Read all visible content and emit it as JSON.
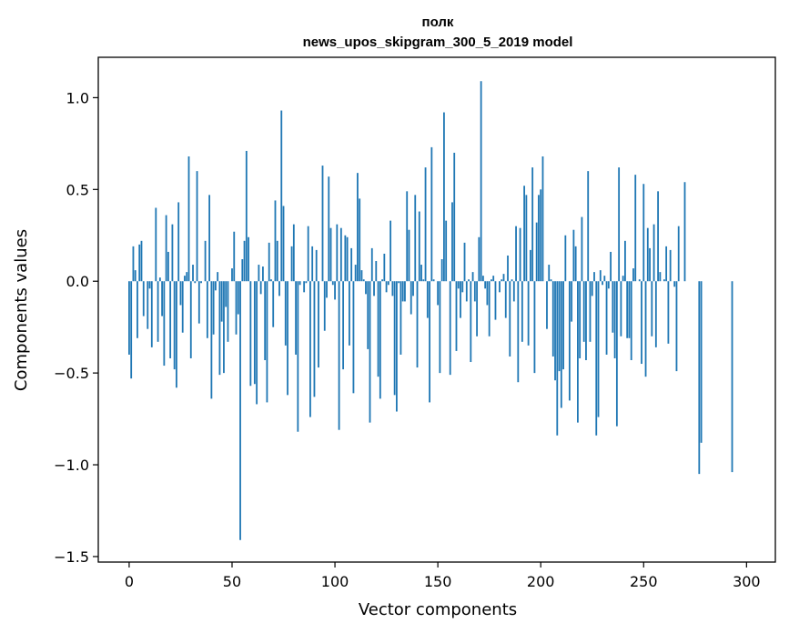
{
  "chart_data": {
    "type": "bar",
    "title": [
      "полк",
      "news_upos_skipgram_300_5_2019 model"
    ],
    "xlabel": "Vector components",
    "ylabel": "Components values",
    "xlim": [
      -15,
      314
    ],
    "ylim": [
      -1.53,
      1.22
    ],
    "xticks": [
      0,
      50,
      100,
      150,
      200,
      250,
      300
    ],
    "yticks": [
      {
        "value": 1.0,
        "label": "1.0"
      },
      {
        "value": 0.5,
        "label": "0.5"
      },
      {
        "value": 0.0,
        "label": "0.0"
      },
      {
        "value": -0.5,
        "label": "−0.5"
      },
      {
        "value": -1.0,
        "label": "−1.0"
      },
      {
        "value": -1.5,
        "label": "−1.5"
      }
    ],
    "grid": false,
    "bar_color": "#1f77b4",
    "values": [
      -0.4,
      -0.53,
      0.19,
      0.06,
      -0.31,
      0.2,
      0.22,
      -0.19,
      0.0,
      -0.26,
      -0.04,
      -0.36,
      0.0,
      0.4,
      -0.33,
      0.02,
      -0.19,
      -0.46,
      0.36,
      0.16,
      -0.42,
      0.31,
      -0.48,
      -0.58,
      0.43,
      -0.13,
      -0.28,
      0.03,
      0.05,
      0.68,
      -0.42,
      0.09,
      -0.01,
      0.6,
      -0.23,
      -0.01,
      0.0,
      0.22,
      -0.31,
      0.47,
      -0.64,
      -0.29,
      -0.05,
      0.05,
      -0.51,
      -0.22,
      -0.5,
      -0.14,
      -0.33,
      0.0,
      0.07,
      0.27,
      -0.29,
      -0.18,
      -1.41,
      0.12,
      0.22,
      0.71,
      0.24,
      -0.57,
      0.0,
      -0.56,
      -0.67,
      0.09,
      -0.07,
      0.08,
      -0.43,
      -0.66,
      0.21,
      0.01,
      -0.25,
      0.44,
      0.22,
      -0.08,
      0.93,
      0.41,
      -0.35,
      -0.62,
      0.0,
      0.19,
      0.31,
      -0.4,
      -0.82,
      -0.02,
      0.0,
      -0.06,
      -0.01,
      0.3,
      -0.74,
      0.19,
      -0.63,
      0.17,
      -0.47,
      0.0,
      0.63,
      -0.27,
      -0.09,
      0.57,
      0.29,
      -0.02,
      -0.1,
      0.31,
      -0.81,
      0.29,
      -0.48,
      0.25,
      0.24,
      -0.35,
      0.18,
      -0.61,
      0.09,
      0.59,
      0.45,
      0.06,
      0.01,
      -0.07,
      -0.37,
      -0.77,
      0.18,
      -0.08,
      0.11,
      -0.52,
      -0.64,
      0.01,
      0.15,
      -0.06,
      -0.02,
      0.33,
      -0.08,
      -0.62,
      -0.71,
      -0.01,
      -0.4,
      -0.11,
      -0.11,
      0.49,
      0.28,
      -0.18,
      -0.08,
      0.47,
      -0.47,
      0.38,
      0.09,
      0.01,
      0.62,
      -0.2,
      -0.66,
      0.73,
      0.01,
      0.0,
      -0.13,
      -0.5,
      0.12,
      0.92,
      0.33,
      0.0,
      -0.51,
      0.43,
      0.7,
      -0.38,
      -0.04,
      -0.2,
      -0.06,
      0.21,
      -0.11,
      0.01,
      -0.44,
      0.05,
      -0.11,
      -0.3,
      0.24,
      1.09,
      0.03,
      -0.04,
      -0.13,
      -0.3,
      0.01,
      0.03,
      -0.21,
      0.0,
      -0.06,
      0.01,
      0.04,
      -0.2,
      0.14,
      -0.41,
      0.01,
      -0.11,
      0.3,
      -0.55,
      0.29,
      -0.33,
      0.52,
      0.47,
      -0.35,
      0.17,
      0.62,
      -0.5,
      0.32,
      0.47,
      0.5,
      0.68,
      0.0,
      -0.26,
      0.09,
      0.01,
      -0.41,
      -0.54,
      -0.84,
      -0.49,
      -0.69,
      -0.48,
      0.25,
      0.0,
      -0.65,
      -0.22,
      0.28,
      0.19,
      -0.77,
      -0.42,
      0.35,
      -0.33,
      -0.43,
      0.6,
      -0.33,
      -0.08,
      0.05,
      -0.84,
      -0.74,
      0.06,
      -0.02,
      0.03,
      -0.4,
      -0.04,
      0.16,
      -0.28,
      -0.42,
      -0.79,
      0.62,
      -0.3,
      0.03,
      0.22,
      -0.31,
      -0.31,
      -0.43,
      0.07,
      0.58,
      0.0,
      0.01,
      -0.45,
      0.53,
      -0.52,
      0.29,
      0.18,
      -0.3,
      0.31,
      -0.36,
      0.49,
      0.05,
      0.0,
      0.01,
      0.19,
      -0.34,
      0.17,
      0.0,
      -0.03,
      -0.49,
      0.3,
      0.0,
      0.0,
      0.54,
      0.0,
      0.0,
      0.0,
      0.0,
      0.0,
      0.0,
      -1.05,
      -0.88,
      0.0,
      0.0,
      0.0,
      0.0,
      0.0,
      0.0,
      0.0,
      0.0,
      0.0,
      0.0,
      0.0,
      0.0,
      0.0,
      0.0,
      -1.04,
      0.0,
      0.0,
      0.0,
      0.0,
      0.0,
      0.0,
      0.0,
      0.0,
      0.0,
      0.0,
      0.0,
      0.0,
      0.0,
      0.0,
      0.0,
      0.0,
      0.0,
      0.0,
      0.0,
      0.0
    ]
  }
}
